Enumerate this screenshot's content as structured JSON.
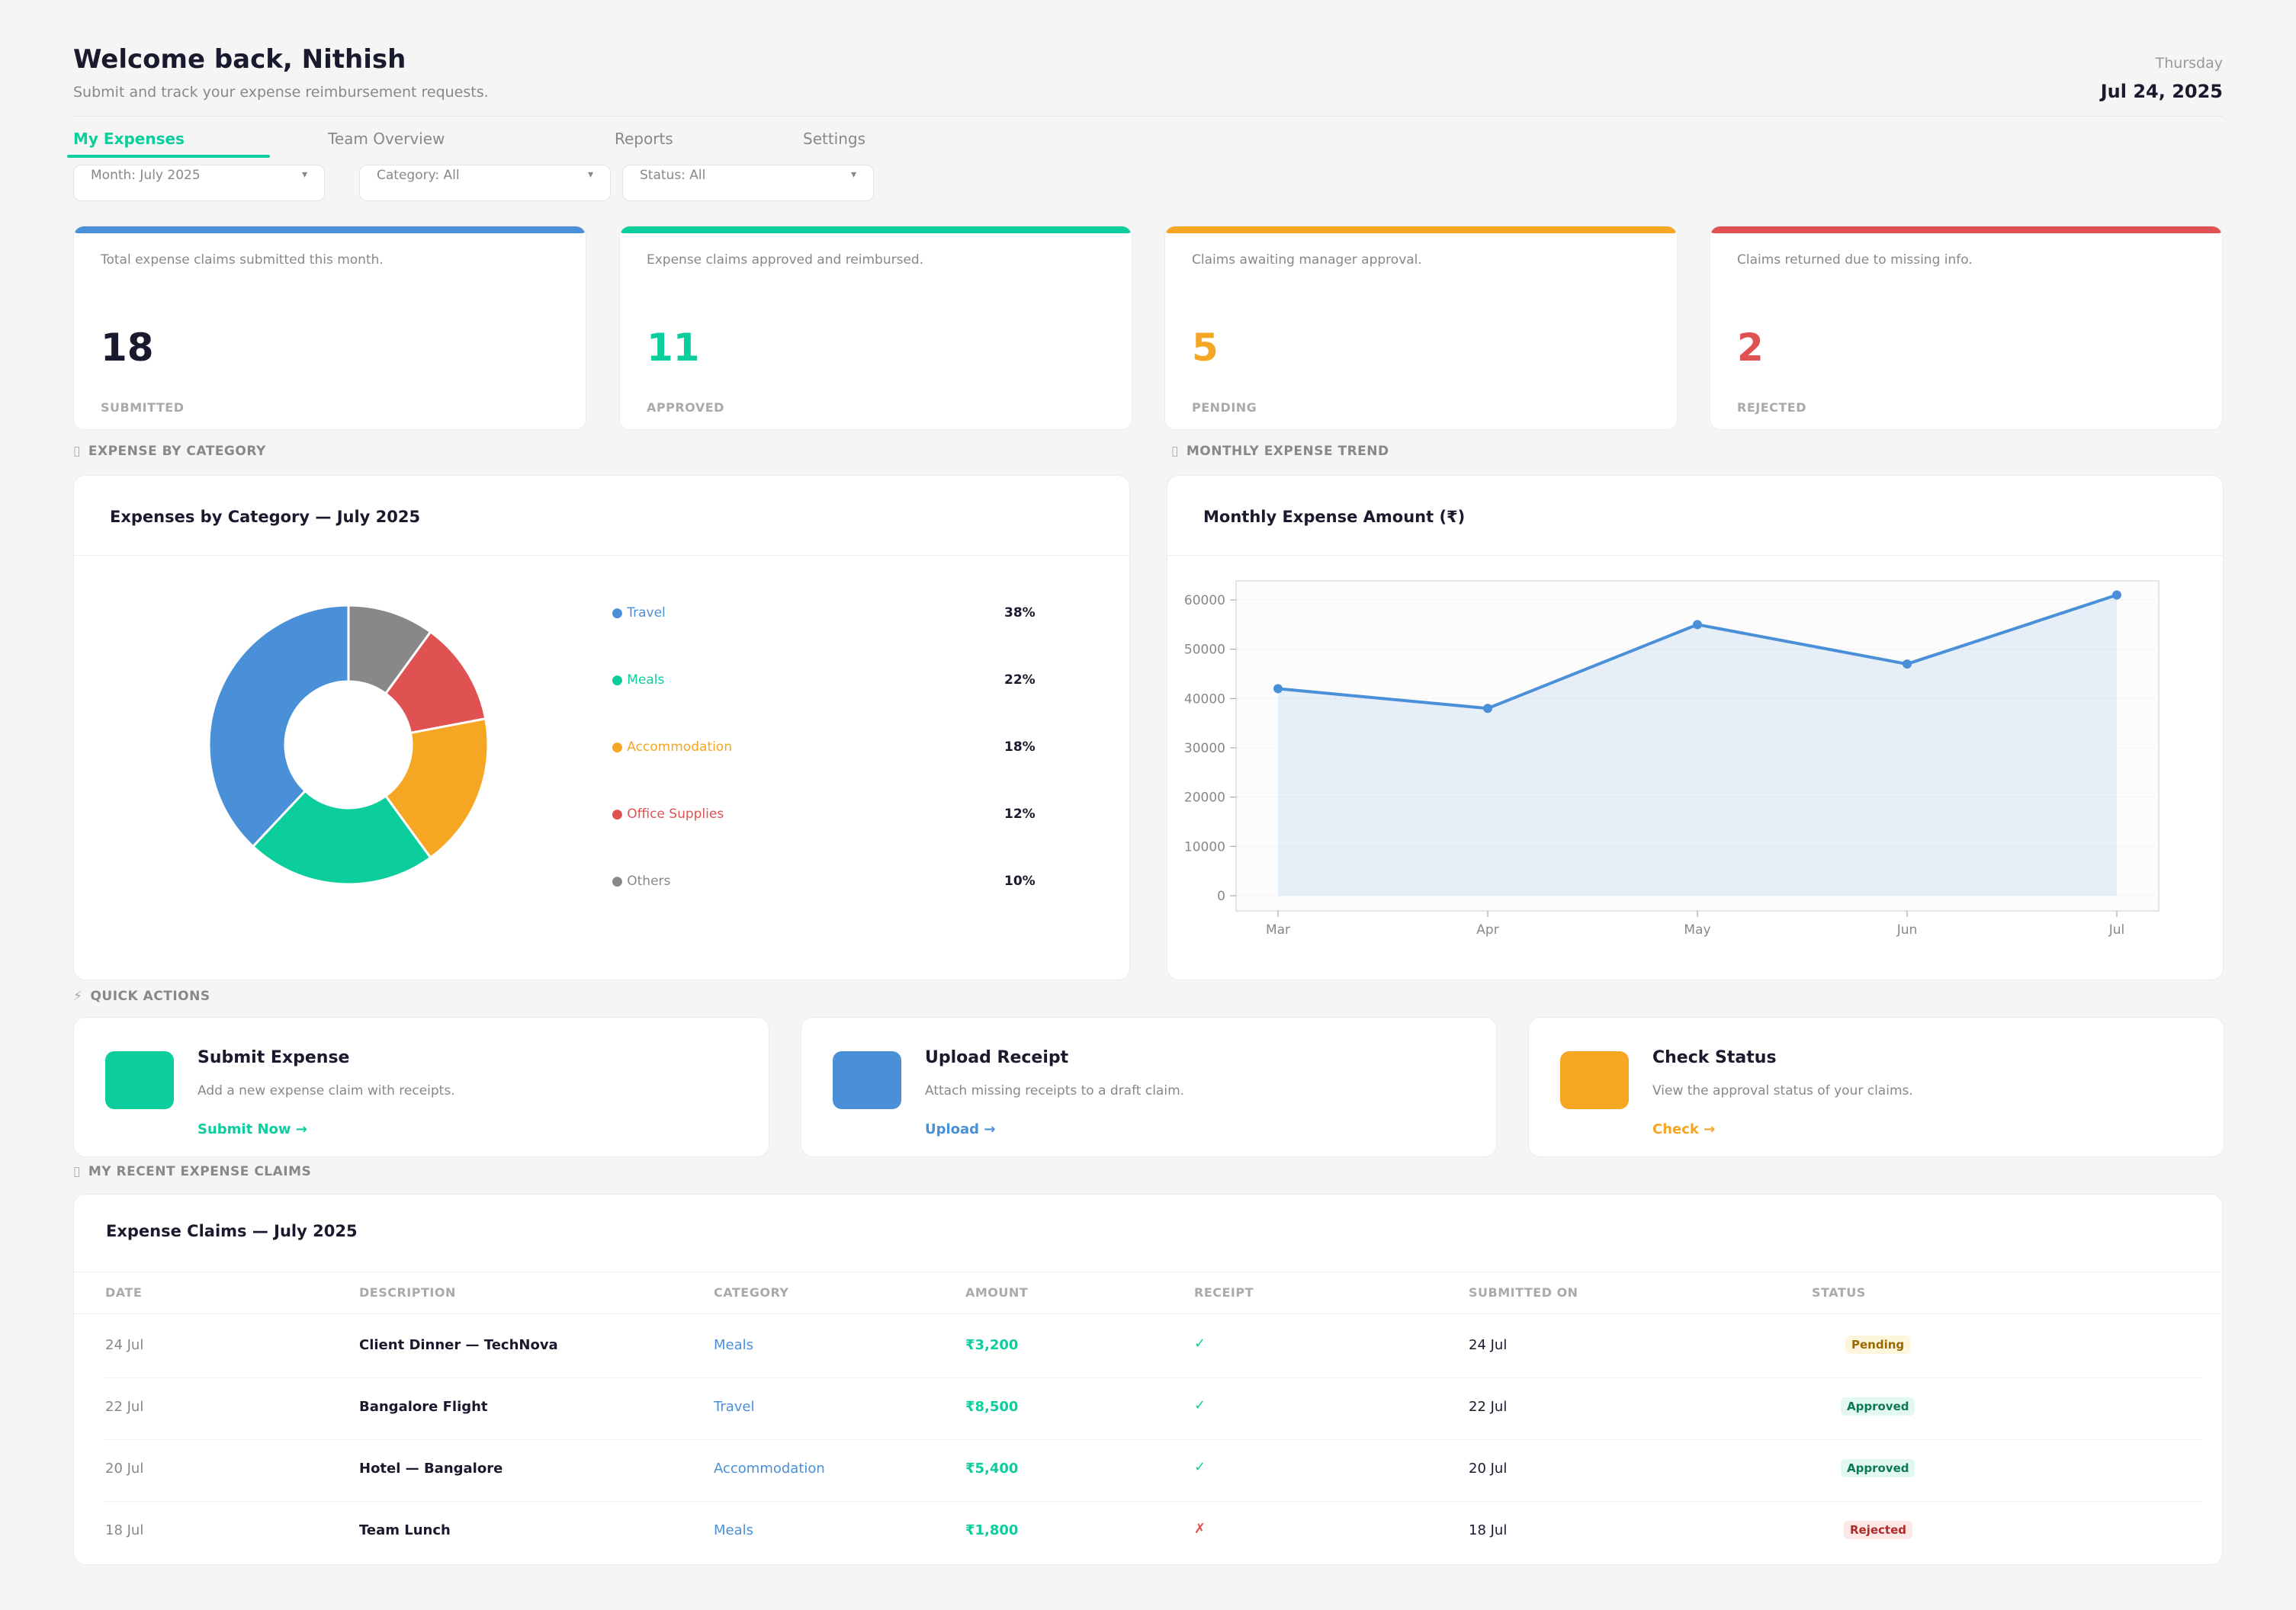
{
  "header": {
    "welcome": "Welcome back, Nithish",
    "subtitle": "Submit and track your expense reimbursement requests.",
    "day": "Thursday",
    "date": "Jul 24, 2025"
  },
  "tabs": [
    {
      "label": "My Expenses",
      "active": true
    },
    {
      "label": "Team Overview",
      "active": false
    },
    {
      "label": "Reports",
      "active": false
    },
    {
      "label": "Settings",
      "active": false
    }
  ],
  "filters": [
    {
      "label": "Month: July 2025"
    },
    {
      "label": "Category: All"
    },
    {
      "label": "Status: All"
    }
  ],
  "filter_arrow": "▾",
  "kpis": [
    {
      "desc": "Total expense claims submitted this month.",
      "value": "18",
      "label": "SUBMITTED",
      "color": "#4a90d9",
      "value_color": "#1a1a2e"
    },
    {
      "desc": "Expense claims approved and reimbursed.",
      "value": "11",
      "label": "APPROVED",
      "color": "#0ccd9c",
      "value_color": "#0ccd9c"
    },
    {
      "desc": "Claims awaiting manager approval.",
      "value": "5",
      "label": "PENDING",
      "color": "#f5a623",
      "value_color": "#f5a623"
    },
    {
      "desc": "Claims returned due to missing info.",
      "value": "2",
      "label": "REJECTED",
      "color": "#e05252",
      "value_color": "#e05252"
    }
  ],
  "sections": {
    "category": "EXPENSE BY CATEGORY",
    "trend": "MONTHLY EXPENSE TREND",
    "quick": "QUICK ACTIONS",
    "claims": "MY RECENT EXPENSE CLAIMS",
    "icon_placeholder": "▯",
    "quick_icon": "⚡"
  },
  "category_panel": {
    "title": "Expenses by Category — July 2025",
    "legend_bullet": "●"
  },
  "trend_panel": {
    "title": "Monthly Expense Amount (₹)"
  },
  "chart_data": [
    {
      "type": "pie",
      "title": "Expenses by Category — July 2025",
      "donut": true,
      "categories": [
        "Travel",
        "Meals",
        "Accommodation",
        "Office Supplies",
        "Others"
      ],
      "values": [
        38,
        22,
        18,
        12,
        10
      ],
      "labels": [
        "38%",
        "22%",
        "18%",
        "12%",
        "10%"
      ],
      "colors": [
        "#4a90d9",
        "#0ccd9c",
        "#f5a623",
        "#e05252",
        "#888888"
      ],
      "legend": "right"
    },
    {
      "type": "area",
      "title": "Monthly Expense Amount (₹)",
      "x": [
        "Mar",
        "Apr",
        "May",
        "Jun",
        "Jul"
      ],
      "y": [
        42000,
        38000,
        55000,
        47000,
        61000
      ],
      "ylim": [
        0,
        60000
      ],
      "yticks": [
        "0",
        "10000",
        "20000",
        "30000",
        "40000",
        "50000",
        "60000"
      ],
      "grid": true,
      "color": "#4a90d9"
    }
  ],
  "quick_actions": [
    {
      "title": "Submit Expense",
      "desc": "Add a new expense claim with receipts.",
      "link": "Submit Now →",
      "color": "#0ccd9c"
    },
    {
      "title": "Upload Receipt",
      "desc": "Attach missing receipts to a draft claim.",
      "link": "Upload →",
      "color": "#4a90d9"
    },
    {
      "title": "Check Status",
      "desc": "View the approval status of your claims.",
      "link": "Check →",
      "color": "#f5a623"
    }
  ],
  "table": {
    "title": "Expense Claims — July 2025",
    "headers": [
      "DATE",
      "DESCRIPTION",
      "CATEGORY",
      "AMOUNT",
      "RECEIPT",
      "SUBMITTED ON",
      "STATUS"
    ],
    "rows": [
      {
        "date": "24 Jul",
        "desc": "Client Dinner — TechNova",
        "category": "Meals",
        "amount": "₹3,200",
        "receipt": "✓",
        "receipt_ok": true,
        "submitted": "24 Jul",
        "status": "Pending"
      },
      {
        "date": "22 Jul",
        "desc": "Bangalore Flight",
        "category": "Travel",
        "amount": "₹8,500",
        "receipt": "✓",
        "receipt_ok": true,
        "submitted": "22 Jul",
        "status": "Approved"
      },
      {
        "date": "20 Jul",
        "desc": "Hotel — Bangalore",
        "category": "Accommodation",
        "amount": "₹5,400",
        "receipt": "✓",
        "receipt_ok": true,
        "submitted": "20 Jul",
        "status": "Approved"
      },
      {
        "date": "18 Jul",
        "desc": "Team Lunch",
        "category": "Meals",
        "amount": "₹1,800",
        "receipt": "✗",
        "receipt_ok": false,
        "submitted": "18 Jul",
        "status": "Rejected"
      }
    ]
  }
}
